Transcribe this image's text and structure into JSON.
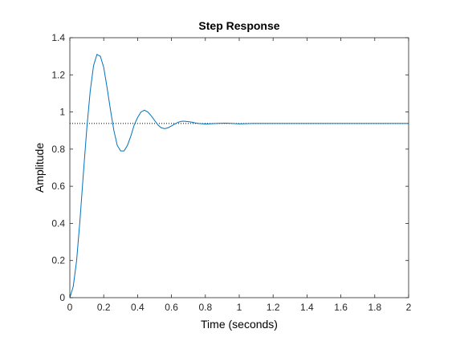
{
  "chart_data": {
    "type": "line",
    "title": "Step Response",
    "xlabel": "Time (seconds)",
    "ylabel": "Amplitude",
    "xlim": [
      0,
      2
    ],
    "ylim": [
      0,
      1.4
    ],
    "xticks": [
      0,
      0.2,
      0.4,
      0.6,
      0.8,
      1,
      1.2,
      1.4,
      1.6,
      1.8,
      2
    ],
    "xtick_labels": [
      "0",
      "0.2",
      "0.4",
      "0.6",
      "0.8",
      "1",
      "1.2",
      "1.4",
      "1.6",
      "1.8",
      "2"
    ],
    "yticks": [
      0,
      0.2,
      0.4,
      0.6,
      0.8,
      1,
      1.2,
      1.4
    ],
    "ytick_labels": [
      "0",
      "0.2",
      "0.4",
      "0.6",
      "0.8",
      "1",
      "1.2",
      "1.4"
    ],
    "grid": false,
    "series": [
      {
        "color": "#0072BD",
        "x": [
          0,
          0.02,
          0.04,
          0.06,
          0.08,
          0.1,
          0.12,
          0.14,
          0.16,
          0.18,
          0.2,
          0.22,
          0.24,
          0.26,
          0.28,
          0.3,
          0.32,
          0.34,
          0.36,
          0.38,
          0.4,
          0.42,
          0.44,
          0.46,
          0.48,
          0.5,
          0.52,
          0.54,
          0.56,
          0.58,
          0.6,
          0.62,
          0.64,
          0.66,
          0.68,
          0.7,
          0.72,
          0.74,
          0.76,
          0.8,
          0.84,
          0.88,
          0.92,
          0.96,
          1.0,
          1.04,
          1.08,
          1.12,
          1.16,
          1.2,
          1.3,
          1.4,
          1.6,
          1.8,
          2.0
        ],
        "y": [
          0,
          0.06,
          0.2,
          0.42,
          0.67,
          0.91,
          1.11,
          1.25,
          1.31,
          1.3,
          1.24,
          1.13,
          1.01,
          0.9,
          0.82,
          0.79,
          0.79,
          0.82,
          0.87,
          0.93,
          0.97,
          1.0,
          1.01,
          1.0,
          0.98,
          0.955,
          0.93,
          0.915,
          0.91,
          0.915,
          0.925,
          0.935,
          0.945,
          0.95,
          0.95,
          0.948,
          0.945,
          0.941,
          0.938,
          0.935,
          0.937,
          0.939,
          0.94,
          0.938,
          0.936,
          0.937,
          0.938,
          0.938,
          0.938,
          0.938,
          0.938,
          0.938,
          0.938,
          0.938,
          0.938
        ]
      }
    ],
    "annotations": [
      {
        "type": "hline",
        "y": 0.938,
        "style": "dotted",
        "color": "#000000"
      }
    ]
  }
}
